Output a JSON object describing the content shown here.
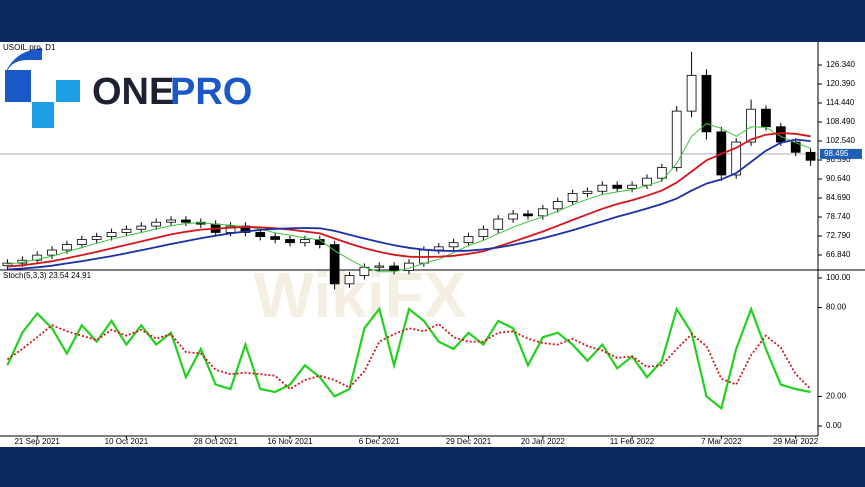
{
  "logo": {
    "left": "ONE",
    "right": "PRO"
  },
  "watermark": "WikiFX",
  "chart_data": {
    "type": "candlestick",
    "title": "USOIL.pro, D1",
    "categories": [
      null,
      null,
      "21 Sep 2021",
      null,
      null,
      null,
      null,
      null,
      "10 Oct 2021",
      null,
      null,
      null,
      null,
      null,
      "28 Oct 2021",
      null,
      null,
      null,
      null,
      "16 Nov 2021",
      null,
      null,
      null,
      null,
      null,
      "6 Dec 2021",
      null,
      null,
      null,
      null,
      null,
      "29 Dec 2021",
      null,
      null,
      null,
      null,
      "20 Jan 2022",
      null,
      null,
      null,
      null,
      null,
      "11 Feb 2022",
      null,
      null,
      null,
      null,
      null,
      "7 Mar 2022",
      null,
      null,
      null,
      null,
      "29 Mar 2022",
      null
    ],
    "open": [
      63.5,
      64.3,
      65.2,
      66.8,
      68.4,
      70.1,
      71.7,
      72.6,
      73.9,
      74.9,
      75.9,
      77.1,
      77.8,
      77.1,
      76.5,
      73.9,
      75.9,
      73.9,
      72.6,
      71.7,
      70.7,
      71.7,
      70.1,
      57.8,
      60.4,
      63.0,
      63.4,
      62.0,
      64.3,
      68.4,
      69.4,
      70.7,
      72.6,
      74.9,
      78.1,
      79.7,
      79.1,
      81.3,
      83.6,
      86.1,
      86.8,
      88.7,
      87.7,
      88.7,
      90.9,
      94.2,
      111.9,
      123.1,
      105.4,
      91.9,
      102.2,
      112.5,
      107.0,
      102.2,
      99.0
    ],
    "high": [
      65.5,
      66.4,
      68.0,
      69.6,
      71.3,
      72.9,
      73.8,
      75.1,
      76.1,
      77.1,
      78.3,
      79.0,
      79.0,
      78.3,
      77.7,
      77.1,
      77.1,
      75.1,
      73.8,
      72.9,
      72.9,
      72.9,
      71.3,
      61.6,
      64.2,
      64.6,
      64.6,
      65.5,
      69.6,
      70.6,
      71.9,
      73.8,
      76.1,
      79.3,
      80.9,
      80.9,
      82.5,
      84.8,
      87.3,
      88.0,
      89.9,
      89.9,
      89.9,
      92.1,
      95.4,
      113.5,
      130.5,
      125.0,
      107.0,
      103.4,
      115.5,
      113.7,
      108.2,
      103.4,
      100.2
    ],
    "low": [
      62.3,
      63.1,
      64.0,
      65.6,
      67.2,
      68.9,
      70.5,
      71.4,
      72.7,
      73.7,
      74.7,
      75.9,
      75.9,
      75.3,
      72.7,
      72.7,
      72.7,
      71.4,
      70.5,
      69.5,
      69.5,
      68.9,
      56.0,
      56.6,
      59.2,
      61.8,
      60.8,
      60.8,
      63.1,
      67.2,
      68.2,
      69.5,
      71.4,
      73.7,
      76.9,
      77.9,
      77.9,
      80.1,
      82.4,
      84.9,
      85.6,
      86.5,
      86.5,
      87.5,
      89.7,
      93.0,
      110.0,
      103.0,
      90.0,
      90.7,
      101.0,
      105.8,
      101.0,
      97.8,
      94.8
    ],
    "close": [
      64.3,
      65.2,
      66.8,
      68.4,
      70.1,
      71.7,
      72.6,
      73.9,
      74.9,
      75.9,
      77.1,
      77.8,
      77.1,
      76.5,
      73.9,
      75.9,
      73.9,
      72.6,
      71.7,
      70.7,
      71.7,
      70.1,
      57.8,
      60.4,
      63.0,
      63.4,
      62.0,
      64.3,
      68.4,
      69.4,
      70.7,
      72.6,
      74.9,
      78.1,
      79.7,
      79.1,
      81.3,
      83.6,
      86.1,
      86.8,
      88.7,
      87.7,
      88.7,
      90.9,
      94.2,
      111.9,
      123.1,
      105.4,
      91.9,
      102.2,
      112.5,
      107.0,
      102.2,
      99.0,
      96.5
    ],
    "up_color": "#ffffff",
    "down_color": "#000000",
    "series": [
      {
        "color": "#3cc43c",
        "values": [
          64,
          64.6,
          65.4,
          66.5,
          67.8,
          69.2,
          70.5,
          71.8,
          72.9,
          73.9,
          75.0,
          76.0,
          76.7,
          77.0,
          76.5,
          76.2,
          75.7,
          75.0,
          73.8,
          73.0,
          72.2,
          71.6,
          68.2,
          65.5,
          63.0,
          61.6,
          61.6,
          62.7,
          64.2,
          65.5,
          67.6,
          69.8,
          71.4,
          73.5,
          75.5,
          77.3,
          78.8,
          80.5,
          82.6,
          84.3,
          85.8,
          86.6,
          87.3,
          88.5,
          90.1,
          95.5,
          104.0,
          108.0,
          106.5,
          104.0,
          107.0,
          106.8,
          104.0,
          102.0,
          100.3
        ]
      },
      {
        "color": "#d4141b",
        "values": [
          63.2,
          63.6,
          64.2,
          64.9,
          65.8,
          66.8,
          67.8,
          68.9,
          70.0,
          71.1,
          72.2,
          73.3,
          74.1,
          74.8,
          75.1,
          75.4,
          75.6,
          75.5,
          75.2,
          74.8,
          74.2,
          73.6,
          72.0,
          70.4,
          69.0,
          67.8,
          66.9,
          66.3,
          66.2,
          66.3,
          66.6,
          67.2,
          68.0,
          69.5,
          71.0,
          72.6,
          74.2,
          76.0,
          77.8,
          79.6,
          81.3,
          82.8,
          84.0,
          85.4,
          87.0,
          89.5,
          93.0,
          96.5,
          98.5,
          100.4,
          103.0,
          104.5,
          105.0,
          104.8,
          104.0
        ]
      },
      {
        "color": "#1a2fa8",
        "values": [
          62.3,
          62.6,
          63.0,
          63.5,
          64.2,
          64.9,
          65.7,
          66.5,
          67.4,
          68.3,
          69.3,
          70.3,
          71.2,
          72.1,
          72.9,
          73.6,
          74.2,
          74.7,
          75.0,
          75.2,
          75.3,
          75.2,
          74.4,
          73.2,
          72.0,
          70.9,
          69.9,
          69.1,
          68.5,
          68.2,
          68.1,
          68.2,
          68.6,
          69.2,
          70.0,
          71.0,
          72.1,
          73.3,
          74.6,
          76.0,
          77.4,
          78.8,
          80.1,
          81.4,
          82.8,
          84.5,
          87.0,
          89.2,
          90.5,
          92.5,
          96.0,
          99.5,
          102.0,
          103.0,
          102.5
        ]
      }
    ],
    "ylim": [
      62.77,
      133.54
    ],
    "yticks": [
      {
        "value": 126.34,
        "label": "126.340"
      },
      {
        "value": 120.39,
        "label": "120.390"
      },
      {
        "value": 114.44,
        "label": "114.440"
      },
      {
        "value": 108.49,
        "label": "108.490"
      },
      {
        "value": 102.54,
        "label": "102.540"
      },
      {
        "value": 96.59,
        "label": "96.590"
      },
      {
        "value": 90.64,
        "label": "90.640"
      },
      {
        "value": 84.69,
        "label": "84.690"
      },
      {
        "value": 78.74,
        "label": "78.740"
      },
      {
        "value": 72.79,
        "label": "72.790"
      },
      {
        "value": 66.84,
        "label": "66.840"
      }
    ],
    "current_price": 98.495,
    "current_price_color": "#1f5fb8",
    "indicator": {
      "type": "line",
      "title": "Stoch(5,3,3) 23.54 24.91",
      "series": [
        {
          "color": "#22d11f",
          "values": [
            41,
            63,
            76,
            66,
            49,
            68,
            57,
            71,
            55,
            68,
            55,
            63,
            33,
            52,
            28,
            25,
            55,
            25,
            23,
            28,
            41,
            33,
            20,
            25,
            66,
            79,
            41,
            79,
            71,
            57,
            52,
            63,
            55,
            71,
            66,
            41,
            60,
            63,
            55,
            44,
            55,
            39,
            47,
            33,
            44,
            79,
            63,
            20,
            12,
            52,
            79,
            52,
            28,
            25,
            23
          ]
        },
        {
          "color": "#d4141b",
          "dashed": true,
          "values": [
            45,
            52,
            60,
            68,
            64,
            61,
            58,
            65,
            61,
            65,
            59,
            62,
            50,
            49,
            38,
            35,
            36,
            35,
            34,
            25,
            31,
            34,
            31,
            26,
            37,
            57,
            62,
            66,
            64,
            69,
            60,
            57,
            57,
            63,
            64,
            59,
            56,
            55,
            59,
            54,
            51,
            46,
            47,
            40,
            41,
            52,
            62,
            54,
            32,
            28,
            48,
            61,
            53,
            35,
            25
          ]
        }
      ],
      "ylim": [
        -4,
        104
      ],
      "yticks": [
        {
          "value": 100,
          "label": "100.00"
        },
        {
          "value": 80,
          "label": "80.00"
        },
        {
          "value": 20,
          "label": "20.00"
        },
        {
          "value": 0,
          "label": "0.00"
        }
      ]
    }
  }
}
